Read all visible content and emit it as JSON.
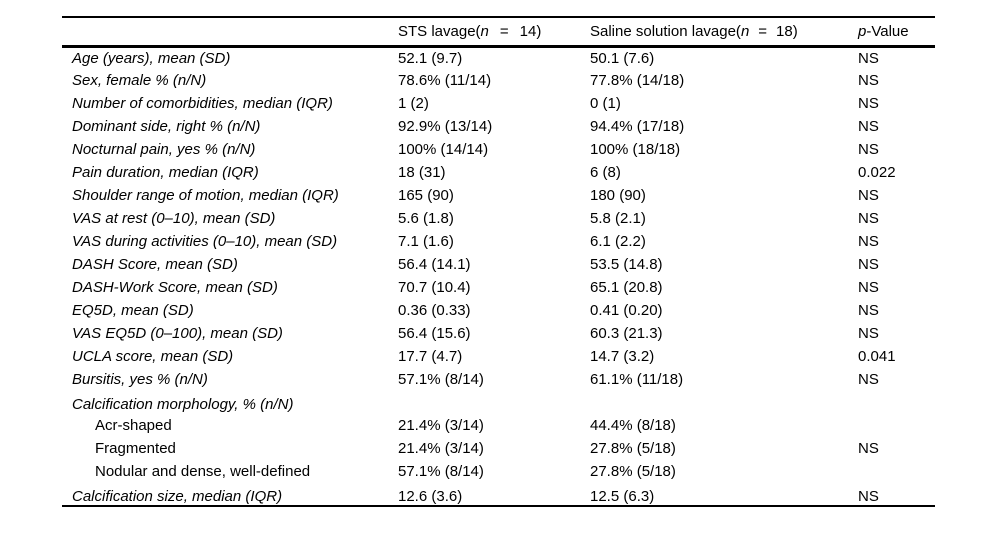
{
  "table": {
    "header": {
      "empty": "",
      "sts": {
        "pre": "STS lavage(",
        "n": "n",
        "eq": "=",
        "count": "14)"
      },
      "saline": {
        "pre": "Saline solution lavage(",
        "n": "n",
        "eq": "=",
        "count": "18)"
      },
      "pvalue": {
        "p": "p",
        "rest": "-Value"
      }
    },
    "rows": [
      {
        "label": "Age (years), mean (SD)",
        "sts": "52.1 (9.7)",
        "saline": "50.1 (7.6)",
        "p": "NS"
      },
      {
        "label": "Sex, female % (n/N)",
        "sts": "78.6% (11/14)",
        "saline": "77.8% (14/18)",
        "p": "NS"
      },
      {
        "label": "Number of comorbidities, median (IQR)",
        "sts": "1 (2)",
        "saline": "0 (1)",
        "p": "NS"
      },
      {
        "label": "Dominant side, right % (n/N)",
        "sts": "92.9% (13/14)",
        "saline": "94.4% (17/18)",
        "p": "NS"
      },
      {
        "label": "Nocturnal pain, yes % (n/N)",
        "sts": "100% (14/14)",
        "saline": "100% (18/18)",
        "p": "NS"
      },
      {
        "label": "Pain duration, median (IQR)",
        "sts": "18 (31)",
        "saline": "6 (8)",
        "p": "0.022"
      },
      {
        "label": "Shoulder range of motion, median (IQR)",
        "sts": "165 (90)",
        "saline": "180 (90)",
        "p": "NS"
      },
      {
        "label": "VAS at rest (0–10), mean (SD)",
        "sts": "5.6 (1.8)",
        "saline": "5.8 (2.1)",
        "p": "NS"
      },
      {
        "label": "VAS during activities (0–10), mean (SD)",
        "sts": "7.1 (1.6)",
        "saline": "6.1 (2.2)",
        "p": "NS"
      },
      {
        "label": "DASH Score, mean (SD)",
        "sts": "56.4 (14.1)",
        "saline": "53.5 (14.8)",
        "p": "NS"
      },
      {
        "label": "DASH-Work Score, mean (SD)",
        "sts": "70.7 (10.4)",
        "saline": "65.1 (20.8)",
        "p": "NS"
      },
      {
        "label": "EQ5D, mean (SD)",
        "sts": "0.36 (0.33)",
        "saline": "0.41 (0.20)",
        "p": "NS"
      },
      {
        "label": "VAS EQ5D (0–100), mean (SD)",
        "sts": "56.4 (15.6)",
        "saline": "60.3 (21.3)",
        "p": "NS"
      },
      {
        "label": "UCLA score, mean (SD)",
        "sts": "17.7 (4.7)",
        "saline": "14.7 (3.2)",
        "p": "0.041"
      },
      {
        "label": "Bursitis, yes % (n/N)",
        "sts": "57.1% (8/14)",
        "saline": "61.1% (11/18)",
        "p": "NS"
      },
      {
        "label": "Calcification morphology, % (n/N)",
        "sts": "",
        "saline": "",
        "p": ""
      },
      {
        "label": "Acr-shaped",
        "sts": "21.4% (3/14)",
        "saline": "44.4% (8/18)",
        "p": ""
      },
      {
        "label": "Fragmented",
        "sts": "21.4% (3/14)",
        "saline": "27.8% (5/18)",
        "p": "NS"
      },
      {
        "label": "Nodular and dense, well-defined",
        "sts": "57.1% (8/14)",
        "saline": "27.8% (5/18)",
        "p": ""
      },
      {
        "label": "Calcification size, median (IQR)",
        "sts": "12.6 (3.6)",
        "saline": "12.5 (6.3)",
        "p": "NS"
      }
    ]
  }
}
